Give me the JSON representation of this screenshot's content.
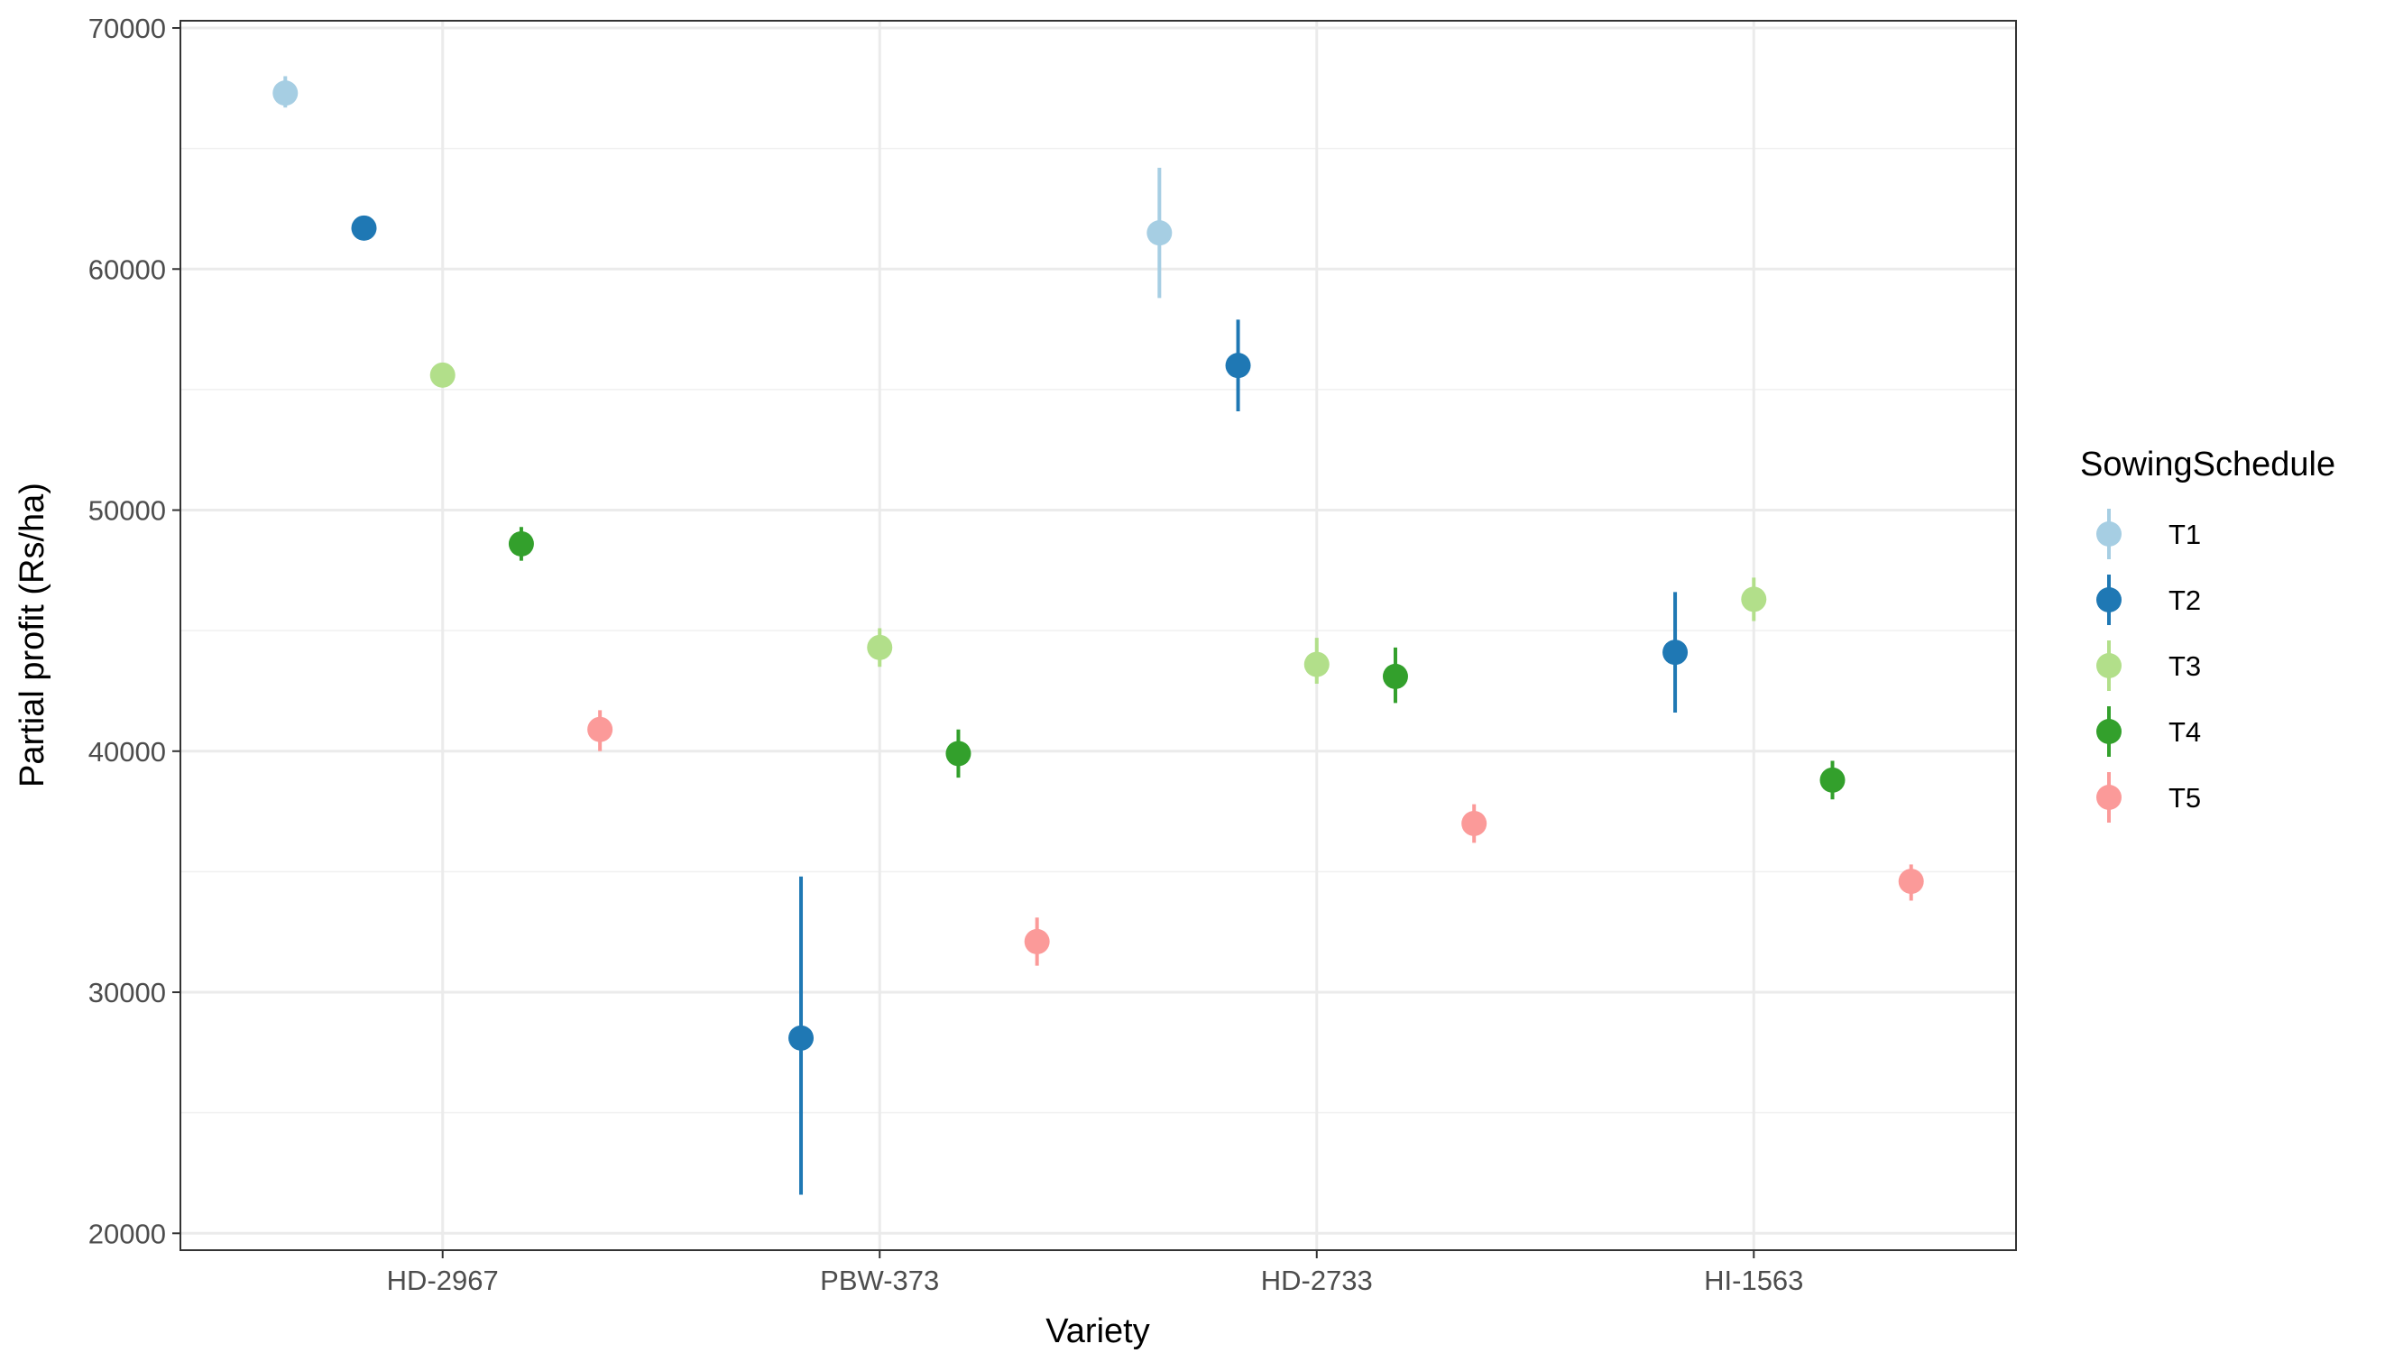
{
  "chart_data": {
    "type": "scatter",
    "subtype": "point-errorbar (dodged by group)",
    "xlabel": "Variety",
    "ylabel": "Partial profit (Rs/ha)",
    "categories": [
      "HD-2967",
      "PBW-373",
      "HD-2733",
      "HI-1563"
    ],
    "ylim": [
      19300,
      70300
    ],
    "yticks": [
      20000,
      30000,
      40000,
      50000,
      60000,
      70000
    ],
    "grid": true,
    "legend": {
      "title": "SowingSchedule",
      "position": "right"
    },
    "series": [
      {
        "name": "T1",
        "color": "#A6CEE3",
        "values": [
          67300,
          null,
          61500,
          null
        ],
        "lower": [
          66700,
          null,
          58800,
          null
        ],
        "upper": [
          68000,
          null,
          64200,
          null
        ]
      },
      {
        "name": "T2",
        "color": "#1F78B4",
        "values": [
          61700,
          28100,
          56000,
          44100
        ],
        "lower": [
          61500,
          21600,
          54100,
          41600
        ],
        "upper": [
          61900,
          34800,
          57900,
          46600
        ]
      },
      {
        "name": "T3",
        "color": "#B2DF8A",
        "values": [
          55600,
          44300,
          43600,
          46300
        ],
        "lower": [
          55400,
          43500,
          42800,
          45400
        ],
        "upper": [
          55800,
          45100,
          44700,
          47200
        ]
      },
      {
        "name": "T4",
        "color": "#33A02C",
        "values": [
          48600,
          39900,
          43100,
          38800
        ],
        "lower": [
          47900,
          38900,
          42000,
          38000
        ],
        "upper": [
          49300,
          40900,
          44300,
          39600
        ]
      },
      {
        "name": "T5",
        "color": "#FB9A99",
        "values": [
          40900,
          32100,
          37000,
          34600
        ],
        "lower": [
          40000,
          31100,
          36200,
          33800
        ],
        "upper": [
          41700,
          33100,
          37800,
          35300
        ]
      }
    ]
  }
}
